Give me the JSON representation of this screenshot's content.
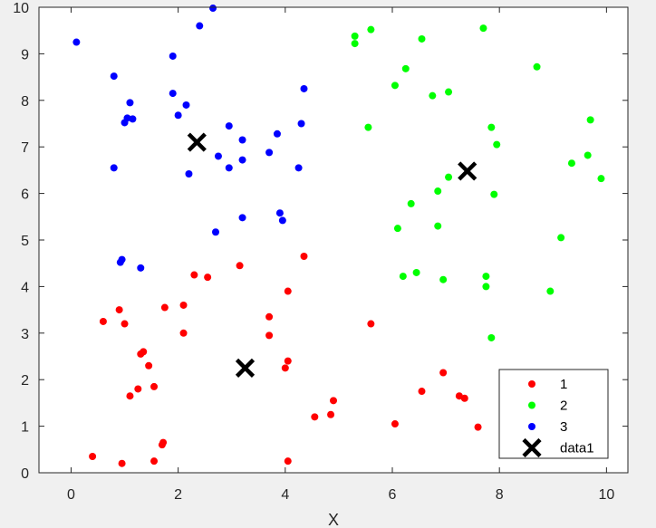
{
  "chart_data": {
    "type": "scatter",
    "title": "",
    "xlabel": "X",
    "ylabel": "",
    "xlim": [
      -0.6,
      10.4
    ],
    "ylim": [
      0,
      10
    ],
    "xticks": [
      "0",
      "2",
      "4",
      "6",
      "8",
      "10"
    ],
    "yticks": [
      "0",
      "1",
      "2",
      "3",
      "4",
      "5",
      "6",
      "7",
      "8",
      "9",
      "10"
    ],
    "legend_position": "bottom-right",
    "series": [
      {
        "name": "1",
        "color": "#ff0000",
        "marker": "dot",
        "points": [
          [
            0.4,
            0.35
          ],
          [
            0.95,
            0.2
          ],
          [
            1.55,
            0.25
          ],
          [
            1.7,
            0.6
          ],
          [
            1.72,
            0.65
          ],
          [
            1.1,
            1.65
          ],
          [
            1.25,
            1.8
          ],
          [
            1.55,
            1.85
          ],
          [
            1.35,
            2.6
          ],
          [
            1.3,
            2.55
          ],
          [
            1.45,
            2.3
          ],
          [
            0.6,
            3.25
          ],
          [
            0.9,
            3.5
          ],
          [
            1.0,
            3.2
          ],
          [
            1.75,
            3.55
          ],
          [
            2.1,
            3.6
          ],
          [
            2.1,
            3.0
          ],
          [
            2.3,
            4.25
          ],
          [
            2.55,
            4.2
          ],
          [
            3.15,
            4.45
          ],
          [
            3.7,
            3.35
          ],
          [
            3.7,
            2.95
          ],
          [
            4.05,
            3.9
          ],
          [
            4.35,
            4.65
          ],
          [
            4.0,
            2.25
          ],
          [
            4.05,
            2.4
          ],
          [
            4.05,
            0.25
          ],
          [
            4.55,
            1.2
          ],
          [
            4.85,
            1.25
          ],
          [
            4.9,
            1.55
          ],
          [
            5.6,
            3.2
          ],
          [
            6.05,
            1.05
          ],
          [
            6.55,
            1.75
          ],
          [
            6.95,
            2.15
          ],
          [
            7.25,
            1.65
          ],
          [
            7.35,
            1.6
          ],
          [
            7.6,
            0.98
          ]
        ]
      },
      {
        "name": "2",
        "color": "#00ff00",
        "marker": "dot",
        "points": [
          [
            5.3,
            9.38
          ],
          [
            5.3,
            9.22
          ],
          [
            5.6,
            9.52
          ],
          [
            6.55,
            9.32
          ],
          [
            7.7,
            9.55
          ],
          [
            6.05,
            8.32
          ],
          [
            6.25,
            8.68
          ],
          [
            6.75,
            8.1
          ],
          [
            7.05,
            8.18
          ],
          [
            8.7,
            8.72
          ],
          [
            5.55,
            7.42
          ],
          [
            7.85,
            7.42
          ],
          [
            7.95,
            7.05
          ],
          [
            9.7,
            7.58
          ],
          [
            9.35,
            6.65
          ],
          [
            9.65,
            6.82
          ],
          [
            9.9,
            6.32
          ],
          [
            7.05,
            6.35
          ],
          [
            6.85,
            6.05
          ],
          [
            7.9,
            5.98
          ],
          [
            6.35,
            5.78
          ],
          [
            6.1,
            5.25
          ],
          [
            6.85,
            5.3
          ],
          [
            9.15,
            5.05
          ],
          [
            6.2,
            4.22
          ],
          [
            6.45,
            4.3
          ],
          [
            6.95,
            4.15
          ],
          [
            7.75,
            4.22
          ],
          [
            7.75,
            4.0
          ],
          [
            8.95,
            3.9
          ],
          [
            7.85,
            2.9
          ]
        ]
      },
      {
        "name": "3",
        "color": "#0000ff",
        "marker": "dot",
        "points": [
          [
            0.1,
            9.25
          ],
          [
            2.4,
            9.6
          ],
          [
            2.65,
            9.98
          ],
          [
            1.9,
            8.95
          ],
          [
            0.8,
            8.52
          ],
          [
            1.9,
            8.15
          ],
          [
            2.15,
            7.9
          ],
          [
            4.35,
            8.25
          ],
          [
            1.1,
            7.95
          ],
          [
            1.05,
            7.62
          ],
          [
            1.15,
            7.6
          ],
          [
            1.0,
            7.52
          ],
          [
            2.0,
            7.68
          ],
          [
            2.95,
            7.45
          ],
          [
            4.3,
            7.5
          ],
          [
            3.2,
            7.15
          ],
          [
            3.85,
            7.28
          ],
          [
            0.8,
            6.55
          ],
          [
            2.2,
            6.42
          ],
          [
            2.75,
            6.8
          ],
          [
            2.95,
            6.55
          ],
          [
            3.2,
            6.72
          ],
          [
            3.7,
            6.88
          ],
          [
            4.25,
            6.55
          ],
          [
            3.9,
            5.58
          ],
          [
            3.95,
            5.42
          ],
          [
            3.2,
            5.48
          ],
          [
            2.7,
            5.17
          ],
          [
            0.95,
            4.58
          ],
          [
            0.92,
            4.52
          ],
          [
            1.3,
            4.4
          ]
        ]
      },
      {
        "name": "data1",
        "color": "#000000",
        "marker": "x",
        "points": [
          [
            2.35,
            7.1
          ],
          [
            7.4,
            6.48
          ],
          [
            3.25,
            2.25
          ]
        ]
      }
    ]
  }
}
